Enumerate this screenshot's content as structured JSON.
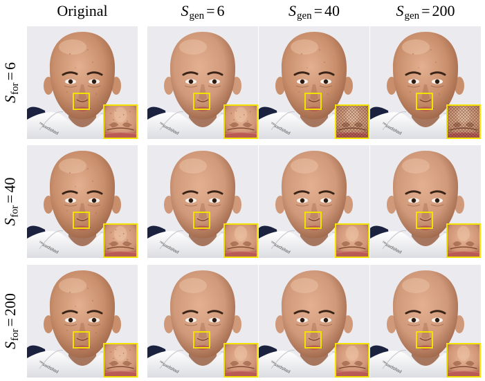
{
  "header": {
    "columns": [
      {
        "label": "Original",
        "symbol": "",
        "sub": "",
        "value": ""
      },
      {
        "label": "",
        "symbol": "S",
        "sub": "gen",
        "value": "6"
      },
      {
        "label": "",
        "symbol": "S",
        "sub": "gen",
        "value": "40"
      },
      {
        "label": "",
        "symbol": "S",
        "sub": "gen",
        "value": "200"
      }
    ],
    "rows": [
      {
        "symbol": "S",
        "sub": "for",
        "value": "6"
      },
      {
        "symbol": "S",
        "sub": "for",
        "value": "40"
      },
      {
        "symbol": "S",
        "sub": "for",
        "value": "200"
      }
    ],
    "equals": "="
  },
  "image": {
    "subject": "bald-man-portrait",
    "shirt_text": "™swdsitad",
    "colors": {
      "background": "#ebebef",
      "skin": "#c98f6c",
      "skin_shadow": "#9a6245",
      "lips": "#b85b55",
      "shirt": "#f3f3f3",
      "collar_shadow": "#1b2240",
      "highlight_box": "#f2e200"
    }
  },
  "cells": [
    {
      "row": 0,
      "col": 0,
      "variant": "original",
      "inset_artifact": "mild"
    },
    {
      "row": 0,
      "col": 1,
      "variant": "smooth",
      "inset_artifact": "mild"
    },
    {
      "row": 0,
      "col": 2,
      "variant": "textured",
      "inset_artifact": "heavy"
    },
    {
      "row": 0,
      "col": 3,
      "variant": "textured",
      "inset_artifact": "heavy"
    },
    {
      "row": 1,
      "col": 0,
      "variant": "original",
      "inset_artifact": "mild"
    },
    {
      "row": 1,
      "col": 1,
      "variant": "smooth",
      "inset_artifact": "none"
    },
    {
      "row": 1,
      "col": 2,
      "variant": "smooth",
      "inset_artifact": "none"
    },
    {
      "row": 1,
      "col": 3,
      "variant": "smooth",
      "inset_artifact": "none"
    },
    {
      "row": 2,
      "col": 0,
      "variant": "original",
      "inset_artifact": "mild"
    },
    {
      "row": 2,
      "col": 1,
      "variant": "smooth",
      "inset_artifact": "none"
    },
    {
      "row": 2,
      "col": 2,
      "variant": "smooth",
      "inset_artifact": "none"
    },
    {
      "row": 2,
      "col": 3,
      "variant": "smooth",
      "inset_artifact": "none"
    }
  ]
}
